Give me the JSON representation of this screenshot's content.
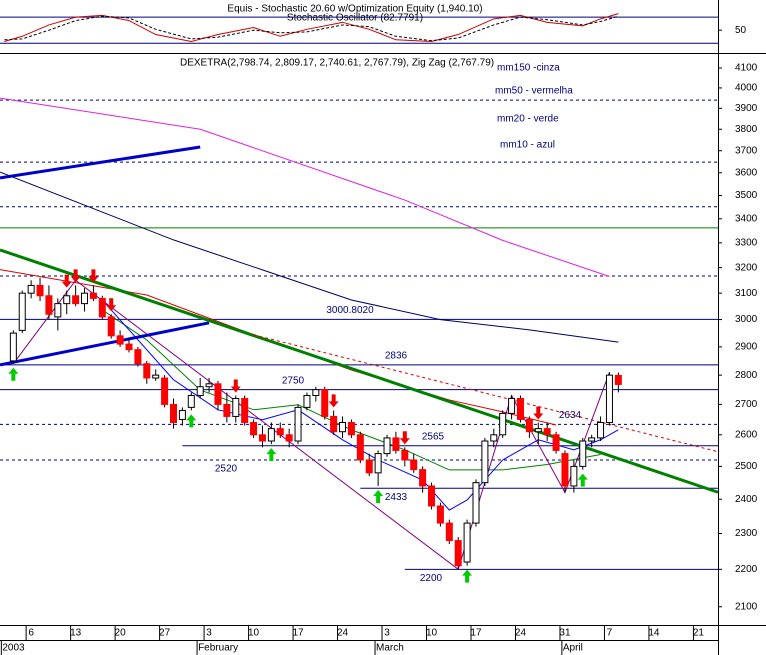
{
  "chart_data": [
    {
      "type": "line",
      "title": "Equis - Stochastic 20.60 w/Optimization Equity (1,940.10)",
      "subtitle": "Stochastic Oscillator (82.7791)",
      "xlim": [
        -1.5,
        79.2
      ],
      "ylim": [
        0,
        110
      ],
      "yticks": [
        50
      ],
      "levels": [
        {
          "value": 80,
          "color": "#000080"
        },
        {
          "value": 20,
          "color": "#000080"
        }
      ],
      "series": [
        {
          "color": "#cc0000",
          "dash": false,
          "x": [
            -1,
            1,
            4,
            7,
            10,
            13,
            16,
            20,
            23,
            27,
            30,
            33,
            37,
            40,
            43,
            47,
            50,
            54,
            57,
            60,
            64,
            66,
            68
          ],
          "values": [
            24,
            36,
            62,
            80,
            84,
            72,
            40,
            24,
            40,
            56,
            36,
            52,
            68,
            52,
            28,
            24,
            40,
            76,
            84,
            68,
            60,
            76,
            88
          ]
        },
        {
          "color": "#000000",
          "dash": true,
          "x": [
            -1,
            1,
            4,
            7,
            10,
            13,
            16,
            20,
            23,
            27,
            30,
            33,
            37,
            40,
            43,
            47,
            50,
            54,
            57,
            60,
            64,
            66,
            68
          ],
          "values": [
            28,
            30,
            50,
            72,
            82,
            78,
            52,
            30,
            34,
            50,
            44,
            46,
            62,
            58,
            36,
            26,
            32,
            62,
            80,
            74,
            62,
            70,
            82
          ]
        }
      ]
    },
    {
      "type": "candlestick",
      "title": "DEXETRA(2,798.74, 2,809.17, 2,740.61, 2,767.79), Zig Zag (2,767.79)",
      "log_scale": true,
      "xlim": [
        -1.5,
        79.2
      ],
      "ylim": [
        2053,
        4167
      ],
      "yticks": [
        2100,
        2200,
        2300,
        2400,
        2500,
        2600,
        2700,
        2800,
        2900,
        3000,
        3100,
        3200,
        3300,
        3400,
        3500,
        3600,
        3700,
        3800,
        3900,
        4000,
        4100
      ],
      "xticks": [
        {
          "value": 2,
          "label": "6"
        },
        {
          "value": 7,
          "label": "13"
        },
        {
          "value": 12,
          "label": "20"
        },
        {
          "value": 17,
          "label": "27"
        },
        {
          "value": 22,
          "label": "3"
        },
        {
          "value": 27,
          "label": "10"
        },
        {
          "value": 32,
          "label": "17"
        },
        {
          "value": 37,
          "label": "24"
        },
        {
          "value": 42,
          "label": "3"
        },
        {
          "value": 47,
          "label": "10"
        },
        {
          "value": 52,
          "label": "17"
        },
        {
          "value": 57,
          "label": "24"
        },
        {
          "value": 62,
          "label": "31"
        },
        {
          "value": 67,
          "label": "7"
        },
        {
          "value": 72,
          "label": "14"
        },
        {
          "value": 77,
          "label": "21"
        }
      ],
      "month_ticks": [
        {
          "value": 0,
          "label": "2003"
        },
        {
          "value": 22,
          "label": "February"
        },
        {
          "value": 42,
          "label": "March"
        },
        {
          "value": 63,
          "label": "April"
        }
      ],
      "up_color": "#ffffff",
      "down_color": "#ff0000",
      "wick_color": "#000000",
      "open": [
        2850,
        2960,
        3100,
        3130,
        3090,
        3010,
        3060,
        3090,
        3060,
        3100,
        3080,
        3010,
        2940,
        2910,
        2890,
        2840,
        2790,
        2790,
        2700,
        2650,
        2690,
        2730,
        2760,
        2770,
        2700,
        2660,
        2720,
        2640,
        2600,
        2580,
        2620,
        2600,
        2580,
        2690,
        2730,
        2750,
        2660,
        2610,
        2640,
        2600,
        2520,
        2480,
        2540,
        2590,
        2550,
        2520,
        2490,
        2440,
        2380,
        2330,
        2280,
        2220,
        2330,
        2450,
        2580,
        2600,
        2670,
        2720,
        2650,
        2610,
        2620,
        2600,
        2540,
        2440,
        2500,
        2580,
        2590,
        2640,
        2798.74
      ],
      "high": [
        2960,
        3110,
        3150,
        3160,
        3130,
        3080,
        3110,
        3130,
        3120,
        3130,
        3090,
        3020,
        2960,
        2930,
        2900,
        2850,
        2820,
        2800,
        2720,
        2690,
        2740,
        2790,
        2790,
        2780,
        2740,
        2730,
        2730,
        2650,
        2630,
        2640,
        2640,
        2620,
        2700,
        2740,
        2760,
        2760,
        2680,
        2660,
        2650,
        2610,
        2540,
        2550,
        2600,
        2610,
        2560,
        2540,
        2500,
        2450,
        2390,
        2340,
        2290,
        2340,
        2460,
        2590,
        2620,
        2680,
        2730,
        2730,
        2660,
        2640,
        2640,
        2610,
        2550,
        2520,
        2590,
        2600,
        2660,
        2810,
        2809.17
      ],
      "low": [
        2840,
        2950,
        3080,
        3070,
        3000,
        2960,
        3020,
        3050,
        3030,
        3070,
        3000,
        2930,
        2900,
        2880,
        2830,
        2770,
        2780,
        2690,
        2620,
        2630,
        2680,
        2720,
        2740,
        2680,
        2640,
        2640,
        2630,
        2590,
        2560,
        2570,
        2590,
        2560,
        2570,
        2680,
        2710,
        2650,
        2600,
        2590,
        2590,
        2510,
        2470,
        2440,
        2530,
        2540,
        2500,
        2480,
        2420,
        2370,
        2320,
        2270,
        2200,
        2210,
        2320,
        2440,
        2560,
        2590,
        2650,
        2640,
        2590,
        2570,
        2580,
        2540,
        2420,
        2420,
        2490,
        2560,
        2580,
        2630,
        2740.61
      ],
      "close": [
        2950,
        3100,
        3130,
        3090,
        3020,
        3060,
        3090,
        3060,
        3100,
        3080,
        3010,
        2940,
        2910,
        2890,
        2840,
        2790,
        2800,
        2700,
        2640,
        2680,
        2730,
        2760,
        2770,
        2700,
        2660,
        2720,
        2640,
        2600,
        2580,
        2620,
        2600,
        2580,
        2690,
        2730,
        2750,
        2660,
        2610,
        2640,
        2600,
        2520,
        2480,
        2540,
        2590,
        2550,
        2520,
        2490,
        2440,
        2380,
        2330,
        2280,
        2210,
        2330,
        2450,
        2580,
        2600,
        2670,
        2720,
        2650,
        2610,
        2620,
        2600,
        2550,
        2440,
        2500,
        2580,
        2590,
        2640,
        2800,
        2767.79
      ],
      "series": [
        {
          "color": "#000066",
          "width": 1,
          "dash": false,
          "x": [
            -1.5,
            18,
            28,
            38,
            48,
            58,
            68
          ],
          "values": [
            3603,
            3312,
            3191,
            3074,
            3000,
            2962,
            2917
          ]
        },
        {
          "color": "#e020e0",
          "width": 1,
          "dash": false,
          "x": [
            -1.5,
            21,
            44,
            55,
            67
          ],
          "values": [
            3950,
            3800,
            3480,
            3310,
            3165
          ]
        },
        {
          "color": "#dd0000",
          "width": 1,
          "dash": false,
          "x": [
            -1.5,
            15,
            27,
            38,
            49,
            55,
            61
          ],
          "values": [
            3192,
            3093,
            2944,
            2818,
            2715,
            2675,
            2632
          ]
        },
        {
          "color": "#008000",
          "width": 1,
          "dash": false,
          "x": [
            10,
            15,
            21,
            27,
            32,
            38,
            44,
            49,
            55,
            60,
            66
          ],
          "values": [
            3036,
            2925,
            2749,
            2682,
            2699,
            2616,
            2552,
            2489,
            2489,
            2506,
            2537
          ]
        },
        {
          "color": "#0000ff",
          "width": 1,
          "dash": false,
          "x": [
            10,
            13,
            18,
            23,
            28,
            32,
            37,
            41,
            46,
            49,
            51,
            55,
            59,
            63,
            66,
            68
          ],
          "values": [
            3074,
            2962,
            2784,
            2682,
            2649,
            2682,
            2584,
            2520,
            2458,
            2368,
            2398,
            2520,
            2584,
            2552,
            2584,
            2616
          ]
        },
        {
          "color": "#800080",
          "width": 1,
          "dash": false,
          "x": [
            0,
            7,
            50,
            56,
            62,
            67
          ],
          "values": [
            2840,
            3150,
            2200,
            2730,
            2420,
            2810
          ]
        },
        {
          "color": "#0000cc",
          "width": 3,
          "dash": false,
          "x": [
            -1.5,
            21
          ],
          "values": [
            3577,
            3717
          ]
        },
        {
          "color": "#0000cc",
          "width": 3,
          "dash": false,
          "x": [
            -1.5,
            22
          ],
          "values": [
            2836,
            2988
          ]
        },
        {
          "color": "#008000",
          "width": 3,
          "dash": false,
          "x": [
            -1.5,
            79.2
          ],
          "values": [
            3271,
            2421
          ]
        },
        {
          "color": "#dd0000",
          "width": 1,
          "dash": true,
          "x": [
            27,
            79.2
          ],
          "values": [
            2944,
            2546
          ]
        }
      ],
      "levels": [
        {
          "value": 3940,
          "color": "#000080",
          "dash": true
        },
        {
          "value": 3648,
          "color": "#000080",
          "dash": true
        },
        {
          "value": 3451,
          "color": "#000080",
          "dash": true
        },
        {
          "value": 3362,
          "color": "#008000",
          "dash": false
        },
        {
          "value": 3167,
          "color": "#000080",
          "dash": true
        },
        {
          "value": 3000.802,
          "label": "3000.8020",
          "color": "#000080",
          "dash": false
        },
        {
          "value": 2836,
          "label": "2836",
          "color": "#000080",
          "dash": false
        },
        {
          "value": 2750,
          "label": "2750",
          "color": "#000080",
          "dash": false
        },
        {
          "value": 2634,
          "label": "2634",
          "color": "#000080",
          "dash": true
        },
        {
          "value": 2565,
          "label": "2565",
          "color": "#000080",
          "dash": false,
          "start": 19
        },
        {
          "value": 2520,
          "label": "2520",
          "color": "#000080",
          "dash": true
        },
        {
          "value": 2433,
          "label": "2433",
          "color": "#000080",
          "dash": false,
          "start": 39
        },
        {
          "value": 2200,
          "label": "2200",
          "color": "#000080",
          "dash": false,
          "start": 44
        }
      ],
      "sell_signals": [
        6,
        7,
        9,
        11,
        25,
        36,
        44,
        59
      ],
      "buy_signals": [
        0,
        20,
        29,
        41,
        51,
        64
      ],
      "annotations": [
        "mm150 -cinza",
        "mm50 - vermelha",
        "mm20 - verde",
        "mm10 - azul"
      ]
    }
  ]
}
